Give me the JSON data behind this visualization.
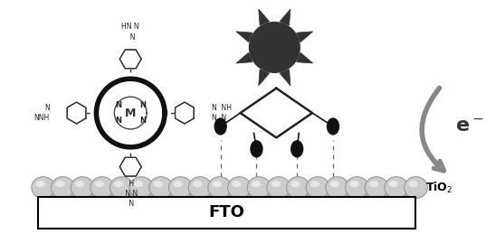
{
  "bg_color": "#ffffff",
  "fto_label": "FTO",
  "tio2_label": "TiO$_2$",
  "e_label": "e$^-$",
  "sphere_color": "#cccccc",
  "sphere_edge_color": "#999999",
  "sun_color": "#333333",
  "arrow_color": "#888888",
  "dot_color": "#111111",
  "line_color": "#222222",
  "dashed_color": "#666666",
  "porphyrin_bold_color": "#111111",
  "porphyrin_light_color": "#444444"
}
